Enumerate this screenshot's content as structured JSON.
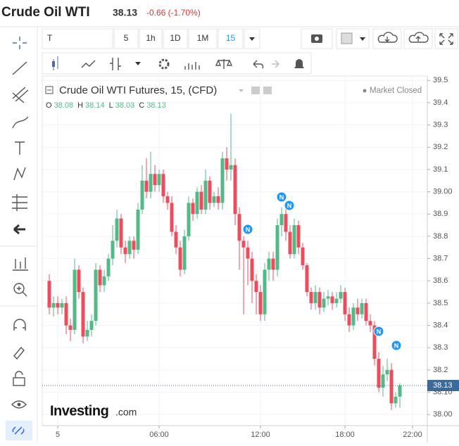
{
  "header": {
    "title": "Crude Oil WTI",
    "price": "38.13",
    "change": "-0.66 (-1.70%)"
  },
  "toolbar": {
    "symbol": "T",
    "intervals": [
      "5",
      "1h",
      "1D",
      "1M",
      "15"
    ]
  },
  "brand": {
    "name": "Investing",
    "suffix": ".com"
  },
  "chart_data": {
    "type": "candlestick",
    "title": "Crude Oil WTI Futures, 15, (CFD)",
    "status": "Market Closed",
    "ohlc_labels": [
      "O",
      "H",
      "L",
      "C"
    ],
    "events": [
      "N",
      "N",
      "N",
      "N",
      "N"
    ],
    "up_color": "#53b987",
    "down_color": "#eb4d5c",
    "open": [
      38.6,
      38.48,
      38.5,
      38.48,
      38.5,
      38.4,
      38.38,
      38.65,
      38.55,
      38.35,
      38.38,
      38.42,
      38.65,
      38.58,
      38.62,
      38.7,
      38.78,
      38.88,
      38.75,
      38.72,
      38.78,
      38.74,
      38.92,
      39.05,
      39.0,
      39.08,
      39.03,
      39.08,
      38.98,
      38.95,
      38.82,
      38.75,
      38.65,
      38.8,
      38.95,
      38.9,
      39.0,
      38.92,
      39.05,
      38.95,
      38.98,
      38.95,
      39.15,
      39.1,
      39.12,
      38.9,
      38.78,
      38.75,
      38.7,
      38.6,
      38.55,
      38.45,
      38.65,
      38.7,
      38.65,
      38.85,
      38.9,
      38.82,
      38.72,
      38.85,
      38.75,
      38.67,
      38.55,
      38.5,
      38.55,
      38.48,
      38.52,
      38.53,
      38.5,
      38.52,
      38.55,
      38.45,
      38.4,
      38.48,
      38.45,
      38.5,
      38.42,
      38.4,
      38.25,
      38.12,
      38.18,
      38.2,
      38.05,
      38.08
    ],
    "high": [
      38.63,
      38.53,
      38.53,
      38.52,
      38.53,
      38.43,
      38.7,
      38.67,
      38.57,
      38.42,
      38.45,
      38.68,
      38.67,
      38.65,
      38.72,
      38.85,
      38.92,
      38.9,
      38.78,
      38.8,
      38.8,
      38.95,
      39.12,
      39.15,
      39.18,
      39.12,
      39.1,
      39.1,
      39.0,
      38.98,
      38.85,
      38.78,
      38.83,
      38.98,
      38.97,
      39.02,
      39.03,
      39.1,
      39.07,
      39.0,
      39.02,
      39.18,
      39.2,
      39.35,
      39.15,
      38.93,
      38.8,
      38.78,
      38.73,
      38.63,
      38.58,
      38.68,
      38.73,
      38.73,
      38.88,
      38.93,
      38.95,
      38.85,
      38.88,
      38.87,
      38.77,
      38.68,
      38.57,
      38.58,
      38.57,
      38.55,
      38.56,
      38.55,
      38.55,
      38.58,
      38.57,
      38.48,
      38.5,
      38.52,
      38.52,
      38.52,
      38.45,
      38.42,
      38.28,
      38.22,
      38.25,
      38.23,
      38.1,
      38.14
    ],
    "low": [
      38.45,
      38.44,
      38.45,
      38.45,
      38.36,
      38.33,
      38.36,
      38.52,
      38.32,
      38.33,
      38.35,
      38.4,
      38.55,
      38.55,
      38.6,
      38.67,
      38.75,
      38.72,
      38.68,
      38.7,
      38.7,
      38.72,
      38.9,
      38.97,
      38.97,
      39.0,
      39.0,
      38.95,
      38.92,
      38.8,
      38.72,
      38.62,
      38.63,
      38.78,
      38.87,
      38.88,
      38.9,
      38.9,
      38.92,
      38.93,
      38.92,
      38.92,
      39.05,
      39.05,
      38.85,
      38.65,
      38.45,
      38.58,
      38.5,
      38.45,
      38.42,
      38.42,
      38.6,
      38.6,
      38.62,
      38.8,
      38.78,
      38.7,
      38.7,
      38.72,
      38.65,
      38.53,
      38.47,
      38.47,
      38.45,
      38.46,
      38.49,
      38.47,
      38.48,
      38.5,
      38.42,
      38.37,
      38.38,
      38.42,
      38.43,
      38.4,
      38.37,
      38.22,
      38.1,
      38.08,
      38.15,
      38.02,
      38.03,
      38.03
    ],
    "close": [
      38.48,
      38.5,
      38.48,
      38.5,
      38.4,
      38.38,
      38.65,
      38.55,
      38.35,
      38.38,
      38.42,
      38.65,
      38.58,
      38.62,
      38.7,
      38.78,
      38.88,
      38.75,
      38.72,
      38.78,
      38.74,
      38.92,
      39.05,
      39.0,
      39.08,
      39.03,
      39.08,
      38.98,
      38.95,
      38.82,
      38.75,
      38.65,
      38.8,
      38.95,
      38.9,
      39.0,
      38.92,
      39.05,
      38.95,
      38.98,
      38.95,
      39.15,
      39.1,
      39.12,
      38.9,
      38.78,
      38.75,
      38.7,
      38.6,
      38.55,
      38.45,
      38.65,
      38.7,
      38.65,
      38.85,
      38.9,
      38.82,
      38.72,
      38.85,
      38.75,
      38.67,
      38.55,
      38.5,
      38.55,
      38.48,
      38.52,
      38.53,
      38.5,
      38.52,
      38.55,
      38.45,
      38.4,
      38.48,
      38.45,
      38.5,
      38.42,
      38.4,
      38.25,
      38.12,
      38.18,
      38.2,
      38.05,
      38.08,
      38.13
    ],
    "ylim": [
      37.95,
      39.52
    ],
    "yticks": [
      {
        "value": 38,
        "label": "38.00"
      },
      {
        "value": 38.1,
        "label": "38.10"
      },
      38.2,
      38.3,
      38.4,
      38.5,
      38.6,
      38.7,
      38.8,
      38.9,
      {
        "value": 39,
        "label": "39.00"
      },
      39.1,
      39.2,
      39.3,
      39.4,
      39.5
    ],
    "xlim": [
      -1.67,
      89.5
    ],
    "xticks": [
      {
        "value": 2,
        "label": "5"
      },
      {
        "value": 26,
        "label": "06:00"
      },
      {
        "value": 50,
        "label": "12:00"
      },
      {
        "value": 70,
        "label": "18:00"
      },
      {
        "value": 86,
        "label": "22:00"
      }
    ],
    "grid": true
  }
}
